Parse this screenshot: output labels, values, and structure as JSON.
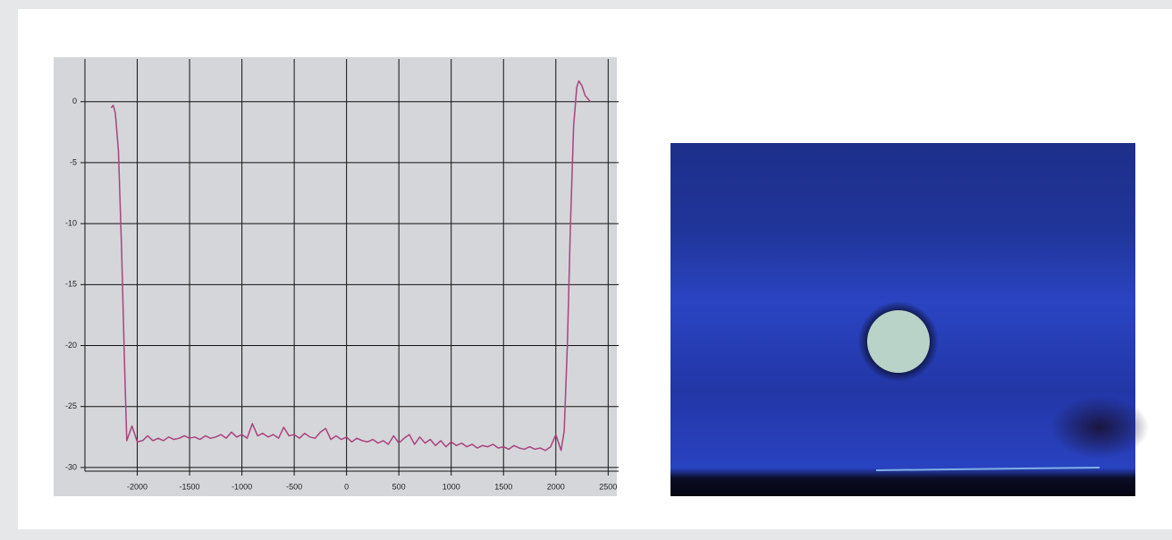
{
  "chart_data": {
    "type": "line",
    "color": "#a8437f",
    "grid": true,
    "xlim": [
      -2500,
      2600
    ],
    "ylim": [
      -30.3,
      3.5
    ],
    "xticks": [
      -2000,
      -1500,
      -1000,
      -500,
      0,
      500,
      1000,
      1500,
      2000,
      2500
    ],
    "yticks": [
      0,
      -5,
      -10,
      -15,
      -20,
      -25,
      -30
    ],
    "x": [
      -2250,
      -2230,
      -2210,
      -2180,
      -2150,
      -2120,
      -2100,
      -2050,
      -2000,
      -1950,
      -1900,
      -1850,
      -1800,
      -1750,
      -1700,
      -1650,
      -1600,
      -1550,
      -1500,
      -1450,
      -1400,
      -1350,
      -1300,
      -1250,
      -1200,
      -1150,
      -1100,
      -1050,
      -1000,
      -950,
      -900,
      -850,
      -800,
      -750,
      -700,
      -650,
      -600,
      -550,
      -500,
      -450,
      -400,
      -350,
      -300,
      -250,
      -200,
      -150,
      -100,
      -50,
      0,
      50,
      100,
      150,
      200,
      250,
      300,
      350,
      400,
      450,
      500,
      550,
      600,
      650,
      700,
      750,
      800,
      850,
      900,
      950,
      1000,
      1050,
      1100,
      1150,
      1200,
      1250,
      1300,
      1350,
      1400,
      1450,
      1500,
      1550,
      1600,
      1650,
      1700,
      1750,
      1800,
      1850,
      1900,
      1950,
      2000,
      2050,
      2080,
      2110,
      2140,
      2170,
      2200,
      2220,
      2250,
      2280,
      2330
    ],
    "values": [
      -0.5,
      -0.3,
      -0.9,
      -4,
      -12,
      -22,
      -27.8,
      -26.6,
      -27.9,
      -27.8,
      -27.4,
      -27.8,
      -27.6,
      -27.8,
      -27.5,
      -27.7,
      -27.6,
      -27.4,
      -27.6,
      -27.5,
      -27.7,
      -27.4,
      -27.6,
      -27.5,
      -27.3,
      -27.6,
      -27.1,
      -27.5,
      -27.3,
      -27.6,
      -26.4,
      -27.4,
      -27.2,
      -27.5,
      -27.3,
      -27.6,
      -26.7,
      -27.4,
      -27.3,
      -27.6,
      -27.2,
      -27.5,
      -27.6,
      -27.1,
      -26.8,
      -27.7,
      -27.4,
      -27.7,
      -27.5,
      -27.9,
      -27.6,
      -27.8,
      -27.9,
      -27.7,
      -28.0,
      -27.8,
      -28.1,
      -27.4,
      -28.0,
      -27.6,
      -27.3,
      -28.1,
      -27.5,
      -28.0,
      -27.7,
      -28.2,
      -27.8,
      -28.3,
      -27.9,
      -28.2,
      -28.0,
      -28.3,
      -28.1,
      -28.4,
      -28.2,
      -28.3,
      -28.1,
      -28.4,
      -28.3,
      -28.5,
      -28.2,
      -28.4,
      -28.5,
      -28.3,
      -28.5,
      -28.4,
      -28.6,
      -28.3,
      -27.3,
      -28.6,
      -27,
      -20,
      -10,
      -2,
      1.2,
      1.7,
      1.3,
      0.5,
      0
    ]
  }
}
